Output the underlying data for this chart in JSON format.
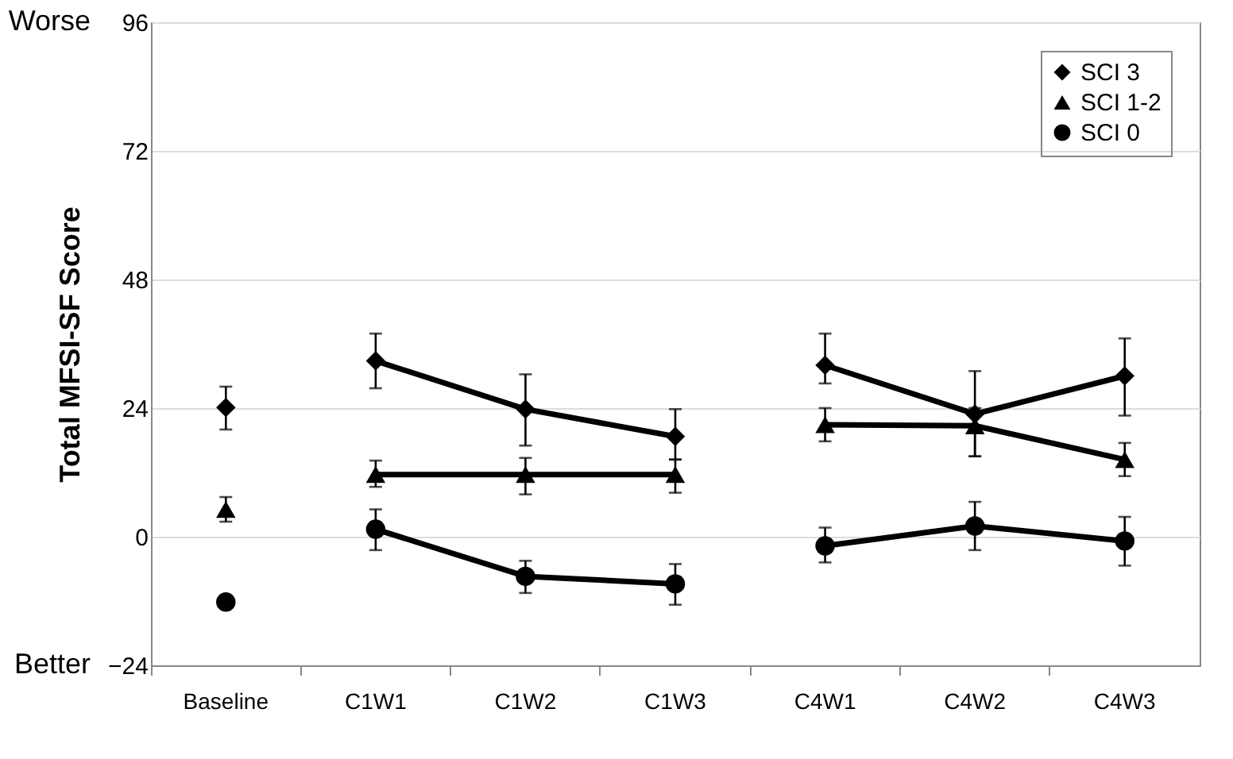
{
  "chart_data": {
    "type": "line",
    "ylabel": "Total MFSI-SF Score",
    "categories": [
      "Baseline",
      "C1W1",
      "C1W2",
      "C1W3",
      "C4W1",
      "C4W2",
      "C4W3"
    ],
    "ylim": [
      -24,
      96
    ],
    "yticks": [
      -24,
      0,
      24,
      48,
      72,
      96
    ],
    "grid": "y",
    "legend": "top right",
    "annotations": [
      "Worse",
      "Better"
    ],
    "series": [
      {
        "name": "SCI 3",
        "marker": "diamond",
        "color": "#000000",
        "values": [
          null,
          32.8,
          23.8,
          18.7,
          null,
          null,
          null
        ],
        "errors": [
          null,
          [
            27.7,
            37.9
          ],
          [
            17.0,
            30.3
          ],
          [
            14.4,
            23.8
          ],
          null,
          null,
          null
        ]
      },
      {
        "marker": "diamond",
        "color": "#000000",
        "values": [
          null,
          null,
          null,
          null,
          32.0,
          22.9,
          30.0
        ],
        "errors": [
          null,
          null,
          null,
          null,
          [
            28.6,
            37.9
          ],
          [
            15.0,
            30.9
          ],
          [
            22.6,
            37.0
          ]
        ]
      },
      {
        "type": "scatter",
        "marker": "diamond",
        "color": "#000000",
        "values": [
          24.1,
          null,
          null,
          null,
          null,
          null,
          null
        ],
        "errors": [
          [
            20.0,
            28.0
          ],
          null,
          null,
          null,
          null,
          null,
          null
        ]
      },
      {
        "name": "SCI 1-2",
        "marker": "triangle",
        "color": "#000000",
        "values": [
          null,
          11.6,
          11.6,
          11.6,
          null,
          null,
          null
        ],
        "errors": [
          null,
          [
            9.3,
            14.2
          ],
          [
            7.9,
            14.7
          ],
          [
            8.2,
            14.4
          ],
          null,
          null,
          null
        ]
      },
      {
        "marker": "triangle",
        "color": "#000000",
        "values": [
          null,
          null,
          null,
          null,
          20.9,
          20.7,
          14.4
        ],
        "errors": [
          null,
          null,
          null,
          null,
          [
            17.8,
            24.0
          ],
          [
            15.0,
            24.0
          ],
          [
            11.3,
            17.5
          ]
        ]
      },
      {
        "type": "scatter",
        "marker": "triangle",
        "color": "#000000",
        "values": [
          5.1,
          null,
          null,
          null,
          null,
          null,
          null
        ],
        "errors": [
          [
            2.8,
            7.4
          ],
          null,
          null,
          null,
          null,
          null,
          null
        ]
      },
      {
        "name": "SCI 0",
        "marker": "circle",
        "color": "#000000",
        "values": [
          null,
          1.4,
          -7.4,
          -8.8,
          null,
          null,
          null
        ],
        "errors": [
          null,
          [
            -2.5,
            5.1
          ],
          [
            -10.5,
            -4.5
          ],
          [
            -12.7,
            -5.1
          ],
          null,
          null,
          null
        ]
      },
      {
        "marker": "circle",
        "color": "#000000",
        "values": [
          null,
          null,
          null,
          null,
          -1.7,
          2.0,
          -0.8
        ],
        "errors": [
          null,
          null,
          null,
          null,
          [
            -4.8,
            1.7
          ],
          [
            -2.5,
            6.5
          ],
          [
            -5.4,
            3.7
          ]
        ]
      },
      {
        "type": "scatter",
        "marker": "circle",
        "color": "#000000",
        "values": [
          -12.2,
          null,
          null,
          null,
          null,
          null,
          null
        ]
      }
    ]
  }
}
